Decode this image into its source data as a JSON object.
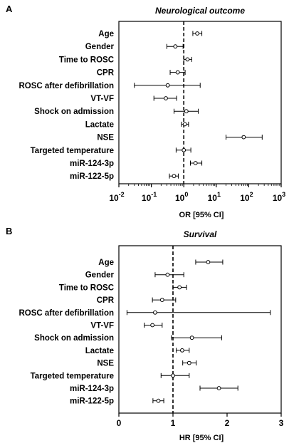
{
  "chart_data": [
    {
      "type": "forest",
      "panel": "A",
      "title": "Neurological outcome",
      "xlabel": "OR [95% CI]",
      "xscale": "log",
      "xlim": [
        0.01,
        1000
      ],
      "reference_line": 1,
      "ticks": [
        {
          "value": 0.01,
          "base": "10",
          "exp": "-2"
        },
        {
          "value": 0.1,
          "base": "10",
          "exp": "-1"
        },
        {
          "value": 1,
          "base": "10",
          "exp": "0"
        },
        {
          "value": 10,
          "base": "10",
          "exp": "1"
        },
        {
          "value": 100,
          "base": "10",
          "exp": "2"
        },
        {
          "value": 1000,
          "base": "10",
          "exp": "3"
        }
      ],
      "rows": [
        {
          "label": "Age",
          "estimate": 2.6,
          "lower": 1.9,
          "upper": 3.6
        },
        {
          "label": "Gender",
          "estimate": 0.55,
          "lower": 0.3,
          "upper": 0.95
        },
        {
          "label": "Time to ROSC",
          "estimate": 1.3,
          "lower": 1.0,
          "upper": 1.75
        },
        {
          "label": "CPR",
          "estimate": 0.65,
          "lower": 0.38,
          "upper": 1.1
        },
        {
          "label": "ROSC after defibrillation",
          "estimate": 0.32,
          "lower": 0.03,
          "upper": 3.2
        },
        {
          "label": "VT-VF",
          "estimate": 0.28,
          "lower": 0.12,
          "upper": 0.6
        },
        {
          "label": "Shock on admission",
          "estimate": 1.2,
          "lower": 0.5,
          "upper": 2.8
        },
        {
          "label": "Lactate",
          "estimate": 1.08,
          "lower": 0.85,
          "upper": 1.4
        },
        {
          "label": "NSE",
          "estimate": 70,
          "lower": 20,
          "upper": 260
        },
        {
          "label": "Targeted temperature",
          "estimate": 1.0,
          "lower": 0.58,
          "upper": 1.65
        },
        {
          "label": "miR-124-3p",
          "estimate": 2.3,
          "lower": 1.6,
          "upper": 3.6
        },
        {
          "label": "miR-122-5p",
          "estimate": 0.5,
          "lower": 0.36,
          "upper": 0.68
        }
      ]
    },
    {
      "type": "forest",
      "panel": "B",
      "title": "Survival",
      "xlabel": "HR [95% CI]",
      "xscale": "linear",
      "xlim": [
        0,
        3
      ],
      "reference_line": 1,
      "ticks": [
        {
          "value": 0,
          "label": "0"
        },
        {
          "value": 1,
          "label": "1"
        },
        {
          "value": 2,
          "label": "2"
        },
        {
          "value": 3,
          "label": "3"
        }
      ],
      "rows": [
        {
          "label": "Age",
          "estimate": 1.65,
          "lower": 1.42,
          "upper": 1.92
        },
        {
          "label": "Gender",
          "estimate": 0.9,
          "lower": 0.67,
          "upper": 1.2
        },
        {
          "label": "Time to ROSC",
          "estimate": 1.12,
          "lower": 1.0,
          "upper": 1.25
        },
        {
          "label": "CPR",
          "estimate": 0.8,
          "lower": 0.62,
          "upper": 1.05
        },
        {
          "label": "ROSC after defibrillation",
          "estimate": 0.67,
          "lower": 0.15,
          "upper": 2.8
        },
        {
          "label": "VT-VF",
          "estimate": 0.62,
          "lower": 0.47,
          "upper": 0.8
        },
        {
          "label": "Shock on admission",
          "estimate": 1.35,
          "lower": 0.97,
          "upper": 1.9
        },
        {
          "label": "Lactate",
          "estimate": 1.17,
          "lower": 1.06,
          "upper": 1.3
        },
        {
          "label": "NSE",
          "estimate": 1.3,
          "lower": 1.18,
          "upper": 1.43
        },
        {
          "label": "Targeted temperature",
          "estimate": 1.0,
          "lower": 0.78,
          "upper": 1.3
        },
        {
          "label": "miR-124-3p",
          "estimate": 1.85,
          "lower": 1.5,
          "upper": 2.2
        },
        {
          "label": "miR-122-5p",
          "estimate": 0.73,
          "lower": 0.63,
          "upper": 0.83
        }
      ]
    }
  ]
}
